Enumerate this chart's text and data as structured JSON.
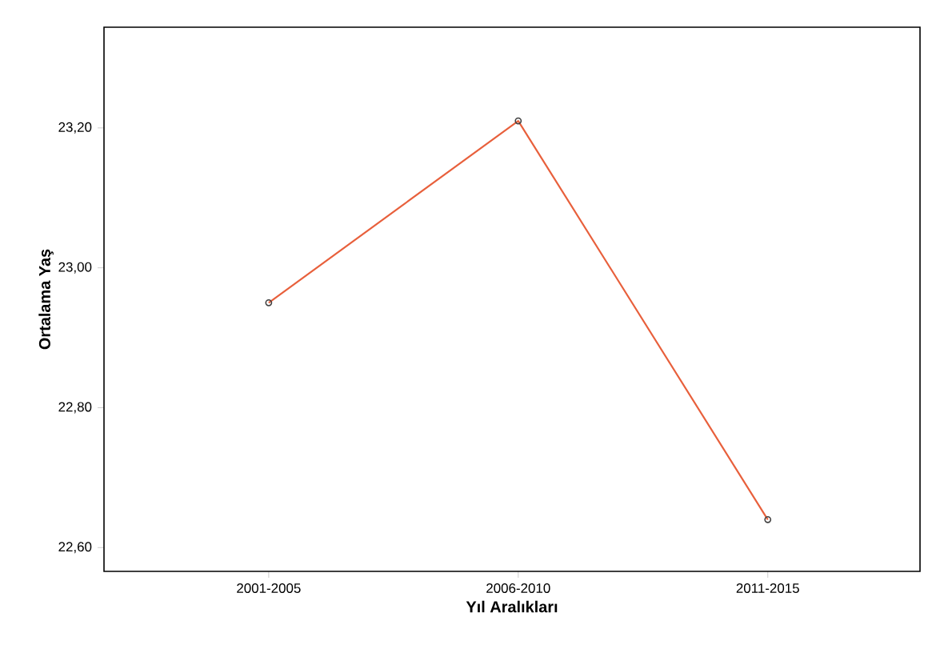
{
  "chart_data": {
    "type": "line",
    "xlabel": "Yıl Aralıkları",
    "ylabel": "Ortalama Yaş",
    "categories": [
      "2001-2005",
      "2006-2010",
      "2011-2015"
    ],
    "series": [
      {
        "color": "#e8603c",
        "values": [
          22.95,
          23.21,
          22.64
        ]
      }
    ],
    "ylim": [
      22.566,
      23.344
    ],
    "yticks": [
      {
        "value": 22.6,
        "label": "22,60"
      },
      {
        "value": 22.8,
        "label": "22,80"
      },
      {
        "value": 23.0,
        "label": "23,00"
      },
      {
        "value": 23.2,
        "label": "23,20"
      }
    ],
    "marker": "circle",
    "line_style": "solid"
  }
}
